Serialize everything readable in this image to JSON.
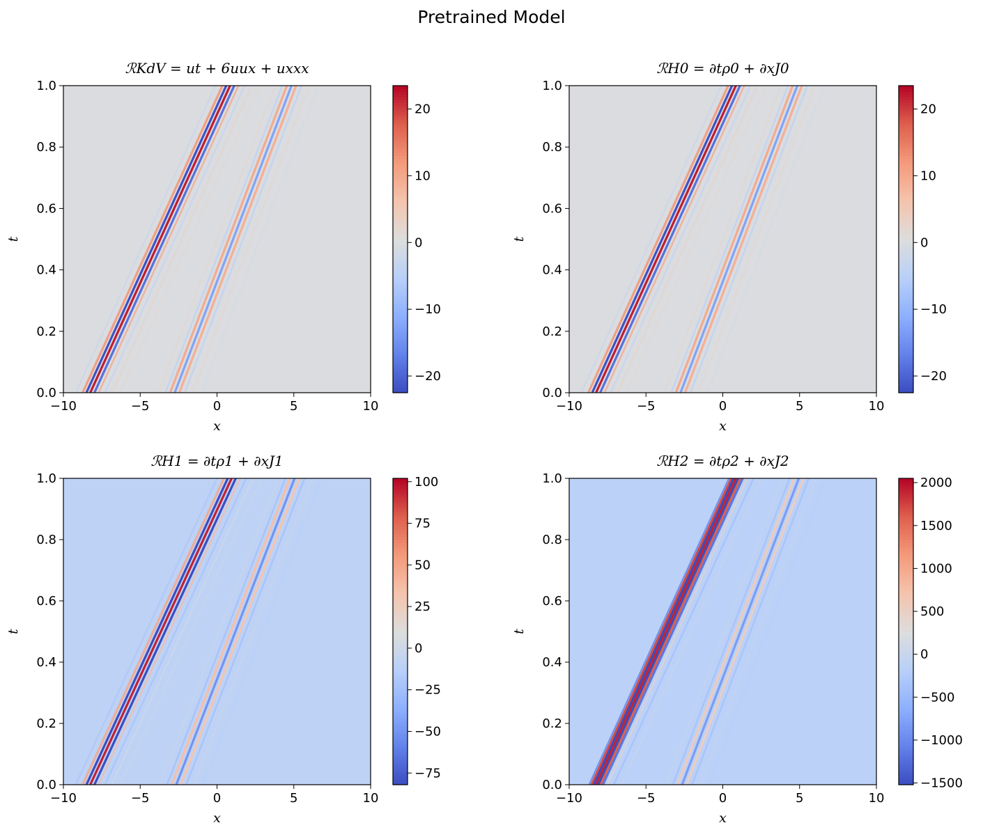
{
  "suptitle": "Pretrained Model",
  "chart_data": [
    {
      "type": "heatmap",
      "title": "ℛ_KdV = u_t + 6uu_x + u_xxx",
      "title_display": "ℛKdV = ut + 6uux + uxxx",
      "xlabel": "x",
      "ylabel": "t",
      "xlim": [
        -10,
        10
      ],
      "ylim": [
        0,
        1
      ],
      "xticks": [
        "−10",
        "−5",
        "0",
        "5",
        "10"
      ],
      "yticks": [
        "0.0",
        "0.2",
        "0.4",
        "0.6",
        "0.8",
        "1.0"
      ],
      "colorbar": {
        "min": -22.5,
        "max": 23.5,
        "ticks": [
          {
            "v": 20,
            "label": "20"
          },
          {
            "v": 10,
            "label": "10"
          },
          {
            "v": 0,
            "label": "0"
          },
          {
            "v": -10,
            "label": "−10"
          },
          {
            "v": -20,
            "label": "−20"
          }
        ]
      },
      "background_value": 0,
      "colormap": "coolwarm",
      "solitons": [
        {
          "x_at_t0": -8.2,
          "x_at_t1": 0.9,
          "amplitude": 22,
          "pattern": "strong"
        },
        {
          "x_at_t0": -2.8,
          "x_at_t1": 4.8,
          "amplitude": 14,
          "pattern": "medium"
        }
      ]
    },
    {
      "type": "heatmap",
      "title": "ℛ_H0 = ∂_t ρ_0 + ∂_x J_0",
      "title_display": "ℛH0 = ∂tρ0 + ∂xJ0",
      "xlabel": "x",
      "ylabel": "t",
      "xlim": [
        -10,
        10
      ],
      "ylim": [
        0,
        1
      ],
      "xticks": [
        "−10",
        "−5",
        "0",
        "5",
        "10"
      ],
      "yticks": [
        "0.0",
        "0.2",
        "0.4",
        "0.6",
        "0.8",
        "1.0"
      ],
      "colorbar": {
        "min": -22.5,
        "max": 23.5,
        "ticks": [
          {
            "v": 20,
            "label": "20"
          },
          {
            "v": 10,
            "label": "10"
          },
          {
            "v": 0,
            "label": "0"
          },
          {
            "v": -10,
            "label": "−10"
          },
          {
            "v": -20,
            "label": "−20"
          }
        ]
      },
      "background_value": 0,
      "colormap": "coolwarm",
      "solitons": [
        {
          "x_at_t0": -8.2,
          "x_at_t1": 0.9,
          "amplitude": 22,
          "pattern": "strong"
        },
        {
          "x_at_t0": -2.8,
          "x_at_t1": 4.8,
          "amplitude": 14,
          "pattern": "medium"
        }
      ]
    },
    {
      "type": "heatmap",
      "title": "ℛ_H1 = ∂_t ρ_1 + ∂_x J_1",
      "title_display": "ℛH1 = ∂tρ1 + ∂xJ1",
      "xlabel": "x",
      "ylabel": "t",
      "xlim": [
        -10,
        10
      ],
      "ylim": [
        0,
        1
      ],
      "xticks": [
        "−10",
        "−5",
        "0",
        "5",
        "10"
      ],
      "yticks": [
        "0.0",
        "0.2",
        "0.4",
        "0.6",
        "0.8",
        "1.0"
      ],
      "colorbar": {
        "min": -82,
        "max": 102,
        "ticks": [
          {
            "v": 100,
            "label": "100"
          },
          {
            "v": 75,
            "label": "75"
          },
          {
            "v": 50,
            "label": "50"
          },
          {
            "v": 25,
            "label": "25"
          },
          {
            "v": 0,
            "label": "0"
          },
          {
            "v": -25,
            "label": "−25"
          },
          {
            "v": -50,
            "label": "−50"
          },
          {
            "v": -75,
            "label": "−75"
          }
        ]
      },
      "background_value": -10,
      "colormap": "coolwarm",
      "solitons": [
        {
          "x_at_t0": -8.2,
          "x_at_t1": 1.0,
          "amplitude": 95,
          "pattern": "strong"
        },
        {
          "x_at_t0": -2.7,
          "x_at_t1": 5.0,
          "amplitude": 55,
          "pattern": "medium"
        }
      ]
    },
    {
      "type": "heatmap",
      "title": "ℛ_H2 = ∂_t ρ_2 + ∂_x J_2",
      "title_display": "ℛH2 = ∂tρ2 + ∂xJ2",
      "xlabel": "x",
      "ylabel": "t",
      "xlim": [
        -10,
        10
      ],
      "ylim": [
        0,
        1
      ],
      "xticks": [
        "−10",
        "−5",
        "0",
        "5",
        "10"
      ],
      "yticks": [
        "0.0",
        "0.2",
        "0.4",
        "0.6",
        "0.8",
        "1.0"
      ],
      "colorbar": {
        "min": -1520,
        "max": 2050,
        "ticks": [
          {
            "v": 2000,
            "label": "2000"
          },
          {
            "v": 1500,
            "label": "1500"
          },
          {
            "v": 1000,
            "label": "1000"
          },
          {
            "v": 500,
            "label": "500"
          },
          {
            "v": 0,
            "label": "0"
          },
          {
            "v": -500,
            "label": "−500"
          },
          {
            "v": -1000,
            "label": "−1000"
          },
          {
            "v": -1500,
            "label": "−1500"
          }
        ]
      },
      "background_value": -150,
      "colormap": "coolwarm",
      "solitons": [
        {
          "x_at_t0": -8.2,
          "x_at_t1": 0.9,
          "amplitude": 1900,
          "pattern": "dense"
        },
        {
          "x_at_t0": -2.7,
          "x_at_t1": 4.9,
          "amplitude": 900,
          "pattern": "medium"
        }
      ]
    }
  ]
}
